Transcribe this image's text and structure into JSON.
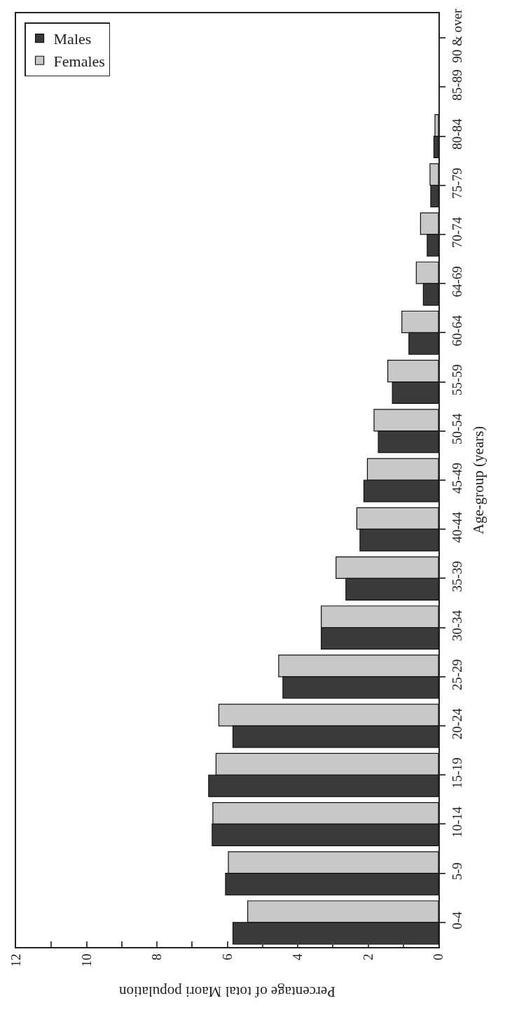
{
  "chart_data": {
    "type": "bar",
    "orientation": "horizontal",
    "xlabel": "Percentage of total Maori population",
    "ylabel": "Age-group (years)",
    "categories": [
      "90 & over",
      "85-89",
      "80-84",
      "75-79",
      "70-74",
      "64-69",
      "60-64",
      "55-59",
      "50-54",
      "45-49",
      "40-44",
      "35-39",
      "30-34",
      "25-29",
      "20-24",
      "15-19",
      "10-14",
      "5-9",
      "0-4"
    ],
    "series": [
      {
        "name": "Males",
        "color": "#3a3a3a",
        "values": [
          null,
          null,
          0.13,
          0.22,
          0.32,
          0.43,
          0.84,
          1.31,
          1.71,
          2.12,
          2.23,
          2.63,
          3.33,
          4.42,
          5.84,
          6.53,
          6.43,
          6.05,
          5.84
        ]
      },
      {
        "name": "Females",
        "color": "#c8c8c8",
        "values": [
          null,
          null,
          0.1,
          0.24,
          0.51,
          0.63,
          1.04,
          1.44,
          1.83,
          2.02,
          2.32,
          2.91,
          3.33,
          4.54,
          6.24,
          6.32,
          6.41,
          5.97,
          5.42
        ]
      }
    ],
    "xlim": [
      12,
      0
    ],
    "xticks": [
      0,
      {
        "value": 1,
        "label": null
      },
      2,
      {
        "value": 3,
        "label": null
      },
      4,
      {
        "value": 5,
        "label": null
      },
      6,
      {
        "value": 7,
        "label": null
      },
      8,
      {
        "value": 9,
        "label": null
      },
      10,
      {
        "value": 11,
        "label": null
      },
      12
    ],
    "legend": "top left"
  }
}
